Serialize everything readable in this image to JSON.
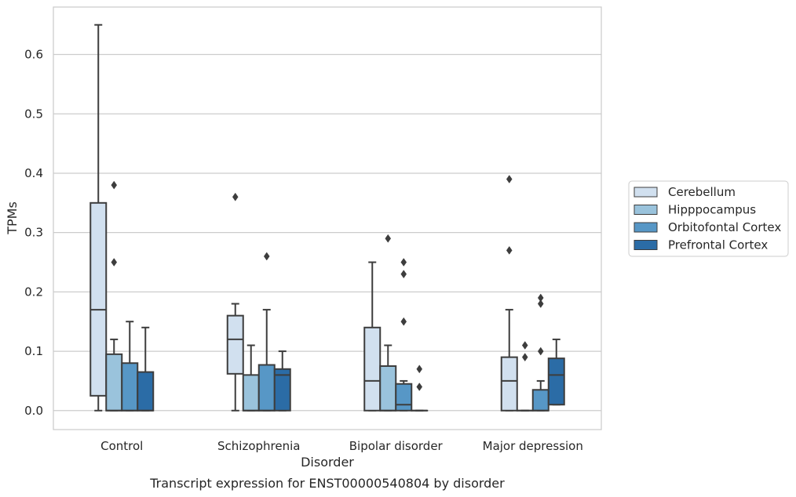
{
  "chart_data": {
    "type": "box",
    "caption": "Transcript expression for ENST00000540804 by disorder",
    "xlabel": "Disorder",
    "ylabel": "TPMs",
    "ylim": [
      -0.032,
      0.68
    ],
    "yticks": [
      "0.0",
      "0.1",
      "0.2",
      "0.3",
      "0.4",
      "0.5",
      "0.6"
    ],
    "grid": "y",
    "legend_position": "right",
    "categories": [
      "Control",
      "Schizophrenia",
      "Bipolar disorder",
      "Major depression"
    ],
    "series": [
      {
        "name": "Cerebellum",
        "color": "#d1e0ef",
        "boxes": [
          {
            "whislo": 0.0,
            "q1": 0.025,
            "med": 0.17,
            "q3": 0.35,
            "whishi": 0.65,
            "fliers": []
          },
          {
            "whislo": 0.0,
            "q1": 0.062,
            "med": 0.12,
            "q3": 0.16,
            "whishi": 0.18,
            "fliers": [
              0.36
            ]
          },
          {
            "whislo": 0.0,
            "q1": 0.0,
            "med": 0.05,
            "q3": 0.14,
            "whishi": 0.25,
            "fliers": []
          },
          {
            "whislo": 0.0,
            "q1": 0.0,
            "med": 0.05,
            "q3": 0.09,
            "whishi": 0.17,
            "fliers": [
              0.27,
              0.39
            ]
          }
        ]
      },
      {
        "name": "Hipppocampus",
        "color": "#9ac3dc",
        "boxes": [
          {
            "whislo": 0.0,
            "q1": 0.0,
            "med": 0.0,
            "q3": 0.095,
            "whishi": 0.12,
            "fliers": [
              0.25,
              0.38
            ]
          },
          {
            "whislo": 0.0,
            "q1": 0.0,
            "med": 0.0,
            "q3": 0.06,
            "whishi": 0.11,
            "fliers": []
          },
          {
            "whislo": 0.0,
            "q1": 0.0,
            "med": 0.0,
            "q3": 0.075,
            "whishi": 0.11,
            "fliers": [
              0.29
            ]
          },
          {
            "whislo": 0.0,
            "q1": 0.0,
            "med": 0.0,
            "q3": 0.0,
            "whishi": 0.0,
            "fliers": [
              0.09,
              0.11
            ]
          }
        ]
      },
      {
        "name": "Orbitofontal Cortex",
        "color": "#5797c6",
        "boxes": [
          {
            "whislo": 0.0,
            "q1": 0.0,
            "med": 0.0,
            "q3": 0.08,
            "whishi": 0.15,
            "fliers": []
          },
          {
            "whislo": 0.0,
            "q1": 0.0,
            "med": 0.0,
            "q3": 0.077,
            "whishi": 0.17,
            "fliers": [
              0.26
            ]
          },
          {
            "whislo": 0.0,
            "q1": 0.0,
            "med": 0.01,
            "q3": 0.045,
            "whishi": 0.05,
            "fliers": [
              0.15,
              0.23,
              0.25
            ]
          },
          {
            "whislo": 0.0,
            "q1": 0.0,
            "med": 0.0,
            "q3": 0.035,
            "whishi": 0.05,
            "fliers": [
              0.1,
              0.18,
              0.19
            ]
          }
        ]
      },
      {
        "name": "Prefrontal Cortex",
        "color": "#2b6ca6",
        "boxes": [
          {
            "whislo": 0.0,
            "q1": 0.0,
            "med": 0.0,
            "q3": 0.065,
            "whishi": 0.14,
            "fliers": []
          },
          {
            "whislo": 0.0,
            "q1": 0.0,
            "med": 0.06,
            "q3": 0.07,
            "whishi": 0.1,
            "fliers": []
          },
          {
            "whislo": 0.0,
            "q1": 0.0,
            "med": 0.0,
            "q3": 0.0,
            "whishi": 0.0,
            "fliers": [
              0.04,
              0.07
            ]
          },
          {
            "whislo": 0.01,
            "q1": 0.01,
            "med": 0.06,
            "q3": 0.088,
            "whishi": 0.12,
            "fliers": []
          }
        ]
      }
    ]
  }
}
